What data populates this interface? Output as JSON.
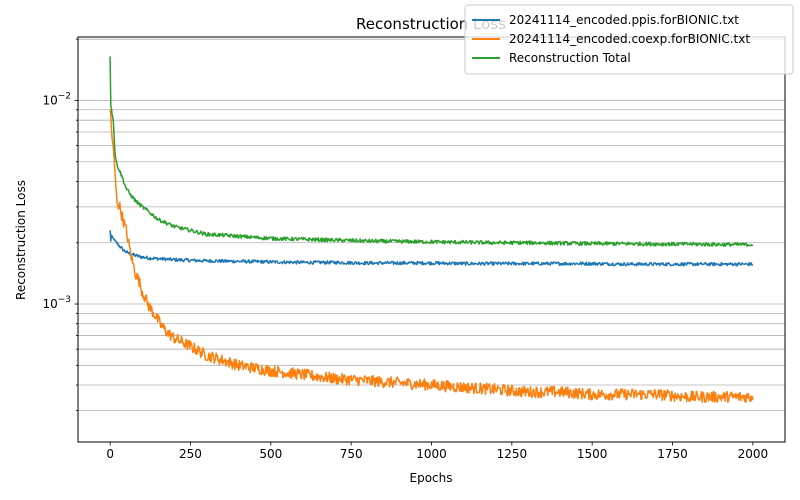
{
  "chart_data": {
    "type": "line",
    "title": "Reconstruction Loss",
    "xlabel": "Epochs",
    "ylabel": "Reconstruction Loss",
    "xlim": [
      -100,
      2100
    ],
    "ylim": [
      0.00021,
      0.0205
    ],
    "yscale": "log",
    "grid": "y-axis major and minor",
    "legend_position": "top-right",
    "x_ticks": [
      0,
      250,
      500,
      750,
      1000,
      1250,
      1500,
      1750,
      2000
    ],
    "y_major_ticks": [
      0.001,
      0.01
    ],
    "y_major_labels": [
      {
        "mantissa": "10",
        "exponent": "−3"
      },
      {
        "mantissa": "10",
        "exponent": "−2"
      }
    ],
    "series": [
      {
        "name": "20241114_encoded.ppis.forBIONIC.txt",
        "color": "#1f77b4",
        "x": [
          0,
          1,
          3,
          5,
          10,
          15,
          20,
          30,
          40,
          50,
          60,
          80,
          100,
          125,
          150,
          175,
          200,
          250,
          300,
          400,
          500,
          600,
          700,
          800,
          900,
          1000,
          1100,
          1200,
          1300,
          1400,
          1500,
          1600,
          1700,
          1800,
          1900,
          2000
        ],
        "values": [
          0.0023,
          0.0019,
          0.0022,
          0.00215,
          0.0021,
          0.00205,
          0.002,
          0.00192,
          0.00185,
          0.0018,
          0.00177,
          0.00173,
          0.0017,
          0.00168,
          0.00167,
          0.00166,
          0.00165,
          0.00164,
          0.00163,
          0.00162,
          0.00161,
          0.0016,
          0.0016,
          0.00159,
          0.00159,
          0.00159,
          0.00158,
          0.00158,
          0.00158,
          0.00158,
          0.00158,
          0.00157,
          0.00157,
          0.00157,
          0.00157,
          0.00157
        ]
      },
      {
        "name": "20241114_encoded.coexp.forBIONIC.txt",
        "color": "#ff7f0e",
        "x": [
          0,
          1,
          2,
          3,
          5,
          8,
          10,
          15,
          20,
          25,
          30,
          40,
          50,
          60,
          70,
          80,
          90,
          100,
          120,
          140,
          160,
          180,
          200,
          250,
          300,
          350,
          400,
          500,
          600,
          700,
          800,
          900,
          1000,
          1100,
          1200,
          1300,
          1400,
          1500,
          1600,
          1700,
          1800,
          1900,
          2000
        ],
        "values": [
          0.0089,
          0.0095,
          0.0085,
          0.0078,
          0.0068,
          0.0062,
          0.0058,
          0.0045,
          0.0033,
          0.0031,
          0.003,
          0.0026,
          0.0023,
          0.0019,
          0.0016,
          0.0014,
          0.0013,
          0.00115,
          0.00098,
          0.00088,
          0.00078,
          0.00072,
          0.00068,
          0.00062,
          0.00056,
          0.00053,
          0.0005,
          0.00047,
          0.00045,
          0.00043,
          0.00042,
          0.00041,
          0.0004,
          0.00039,
          0.00038,
          0.00037,
          0.00037,
          0.00036,
          0.00036,
          0.00036,
          0.00035,
          0.00035,
          0.00035
        ]
      },
      {
        "name": "Reconstruction Total",
        "color": "#2ca02c",
        "x": [
          0,
          1,
          2,
          5,
          10,
          15,
          20,
          30,
          40,
          50,
          60,
          80,
          100,
          125,
          150,
          175,
          200,
          250,
          300,
          350,
          400,
          500,
          600,
          700,
          800,
          900,
          1000,
          1100,
          1200,
          1300,
          1400,
          1500,
          1600,
          1700,
          1800,
          1900,
          2000
        ],
        "values": [
          0.0165,
          0.0125,
          0.0095,
          0.0088,
          0.008,
          0.0055,
          0.0049,
          0.0045,
          0.0041,
          0.0037,
          0.0035,
          0.0032,
          0.003,
          0.0028,
          0.0026,
          0.0025,
          0.0024,
          0.0023,
          0.0022,
          0.00218,
          0.00215,
          0.0021,
          0.00208,
          0.00206,
          0.00204,
          0.00203,
          0.00202,
          0.00201,
          0.002,
          0.002,
          0.00199,
          0.00198,
          0.00198,
          0.00197,
          0.00197,
          0.00196,
          0.00196
        ]
      }
    ]
  }
}
